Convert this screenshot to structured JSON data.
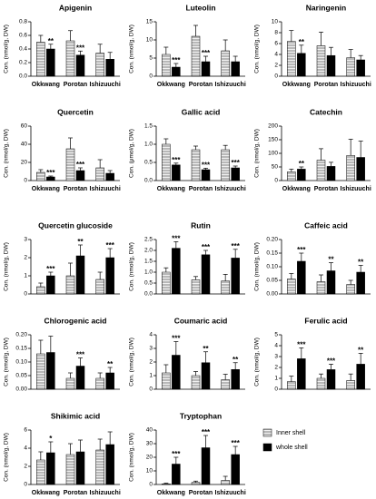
{
  "chart_data": [
    {
      "type": "bar",
      "title": "Apigenin",
      "ylabel": "Con. (nmol/g, DW)",
      "categories": [
        "Okkwang",
        "Porotan",
        "Ishizuuchi"
      ],
      "ylim": [
        0,
        0.8
      ],
      "yticks": [
        {
          "value": 0,
          "label": "0.0"
        },
        0.2,
        0.4,
        0.6,
        0.8
      ],
      "series": [
        {
          "values": [
            0.5,
            0.52,
            0.34
          ],
          "errors": [
            0.1,
            0.15,
            0.13
          ],
          "stars": [
            null,
            null,
            null
          ]
        },
        {
          "values": [
            0.4,
            0.31,
            0.25
          ],
          "errors": [
            0.07,
            0.06,
            0.1
          ],
          "stars": [
            "**",
            "***",
            null
          ]
        }
      ]
    },
    {
      "type": "bar",
      "title": "Luteolin",
      "ylabel": "Con. (nmol/g, DW)",
      "categories": [
        "Okkwang",
        "Porotan",
        "Ishizuuchi"
      ],
      "ylim": [
        0,
        15
      ],
      "yticks": [
        0,
        5,
        10,
        15
      ],
      "series": [
        {
          "values": [
            6,
            11,
            7
          ],
          "errors": [
            2,
            3,
            3
          ],
          "stars": [
            null,
            null,
            null
          ]
        },
        {
          "values": [
            2.5,
            4,
            4
          ],
          "errors": [
            1,
            1.5,
            1.5
          ],
          "stars": [
            "***",
            "***",
            null
          ]
        }
      ]
    },
    {
      "type": "bar",
      "title": "Naringenin",
      "ylabel": "Con. (nmol/g, DW)",
      "categories": [
        "Okkwang",
        "Porotan",
        "Ishizuuchi"
      ],
      "ylim": [
        0,
        10
      ],
      "yticks": [
        0,
        2,
        4,
        6,
        8,
        10
      ],
      "series": [
        {
          "values": [
            6.4,
            5.6,
            3.4
          ],
          "errors": [
            2,
            2.5,
            1.5
          ],
          "stars": [
            null,
            null,
            null
          ]
        },
        {
          "values": [
            4.2,
            3.8,
            3
          ],
          "errors": [
            1.5,
            1.5,
            0.8
          ],
          "stars": [
            "**",
            null,
            null
          ]
        }
      ]
    },
    {
      "type": "bar",
      "title": "Quercetin",
      "ylabel": "Con. (nmol/g, DW)",
      "categories": [
        "Okkwang",
        "Porotan",
        "Ishizuuchi"
      ],
      "ylim": [
        0,
        60
      ],
      "yticks": [
        0,
        20,
        40,
        60
      ],
      "series": [
        {
          "values": [
            9,
            35,
            14
          ],
          "errors": [
            3,
            12,
            9
          ],
          "stars": [
            null,
            null,
            null
          ]
        },
        {
          "values": [
            4,
            11,
            8
          ],
          "errors": [
            1,
            3,
            3
          ],
          "stars": [
            "***",
            "***",
            null
          ]
        }
      ]
    },
    {
      "type": "bar",
      "title": "Gallic acid",
      "ylabel": "Con. (μmol/g, DW)",
      "categories": [
        "Okkwang",
        "Porotan",
        "Ishizuuchi"
      ],
      "ylim": [
        0,
        1.5
      ],
      "yticks": [
        {
          "value": 0,
          "label": "0.0"
        },
        0.5,
        {
          "value": 1,
          "label": "1.0"
        },
        1.5
      ],
      "series": [
        {
          "values": [
            1.0,
            0.85,
            0.85
          ],
          "errors": [
            0.15,
            0.1,
            0.12
          ],
          "stars": [
            null,
            null,
            null
          ]
        },
        {
          "values": [
            0.43,
            0.3,
            0.35
          ],
          "errors": [
            0.05,
            0.04,
            0.05
          ],
          "stars": [
            "***",
            "***",
            "***"
          ]
        }
      ]
    },
    {
      "type": "bar",
      "title": "Catechin",
      "ylabel": "Con. (nmol/g, DW)",
      "categories": [
        "Okkwang",
        "Porotan",
        "Ishizuuchi"
      ],
      "ylim": [
        0,
        200
      ],
      "yticks": [
        0,
        50,
        100,
        150,
        200
      ],
      "series": [
        {
          "values": [
            32,
            75,
            92
          ],
          "errors": [
            10,
            42,
            60
          ],
          "stars": [
            null,
            null,
            null
          ]
        },
        {
          "values": [
            42,
            52,
            85
          ],
          "errors": [
            8,
            15,
            60
          ],
          "stars": [
            "**",
            null,
            null
          ]
        }
      ]
    },
    {
      "type": "bar",
      "title": "Quercetin glucoside",
      "ylabel": "Con. (nmol/g, DW)",
      "categories": [
        null,
        null,
        null
      ],
      "ylim": [
        0,
        3
      ],
      "yticks": [
        0,
        1,
        2,
        3
      ],
      "series": [
        {
          "values": [
            0.4,
            1.0,
            0.8
          ],
          "errors": [
            0.2,
            0.7,
            0.4
          ],
          "stars": [
            null,
            null,
            null
          ]
        },
        {
          "values": [
            1.0,
            2.1,
            2.0
          ],
          "errors": [
            0.2,
            0.6,
            0.5
          ],
          "stars": [
            "***",
            "**",
            "***"
          ]
        }
      ]
    },
    {
      "type": "bar",
      "title": "Rutin",
      "ylabel": "Con. (nmol/g, DW)",
      "categories": [
        null,
        null,
        null
      ],
      "ylim": [
        0,
        2.5
      ],
      "yticks": [
        {
          "value": 0,
          "label": "0.0"
        },
        0.5,
        {
          "value": 1,
          "label": "1.0"
        },
        1.5,
        {
          "value": 2,
          "label": "2.0"
        },
        2.5
      ],
      "series": [
        {
          "values": [
            1.0,
            0.65,
            0.6
          ],
          "errors": [
            0.2,
            0.15,
            0.3
          ],
          "stars": [
            null,
            null,
            null
          ]
        },
        {
          "values": [
            2.1,
            1.8,
            1.65
          ],
          "errors": [
            0.3,
            0.2,
            0.4
          ],
          "stars": [
            "***",
            "***",
            "***"
          ]
        }
      ]
    },
    {
      "type": "bar",
      "title": "Caffeic acid",
      "ylabel": "Con. (nmol/g, DW)",
      "categories": [
        null,
        null,
        null
      ],
      "ylim": [
        0,
        0.2
      ],
      "yticks": [
        {
          "value": 0,
          "label": "0.00"
        },
        0.05,
        {
          "value": 0.1,
          "label": "0.10"
        },
        0.15,
        {
          "value": 0.2,
          "label": "0.20"
        }
      ],
      "series": [
        {
          "values": [
            0.055,
            0.045,
            0.035
          ],
          "errors": [
            0.02,
            0.025,
            0.015
          ],
          "stars": [
            null,
            null,
            null
          ]
        },
        {
          "values": [
            0.12,
            0.085,
            0.08
          ],
          "errors": [
            0.03,
            0.03,
            0.025
          ],
          "stars": [
            "***",
            "**",
            "**"
          ]
        }
      ]
    },
    {
      "type": "bar",
      "title": "Chlorogenic acid",
      "ylabel": "Con. (nmol/g, DW)",
      "categories": [
        null,
        null,
        null
      ],
      "ylim": [
        0,
        0.2
      ],
      "yticks": [
        {
          "value": 0,
          "label": "0.00"
        },
        0.05,
        {
          "value": 0.1,
          "label": "0.10"
        },
        0.15,
        {
          "value": 0.2,
          "label": "0.20"
        }
      ],
      "series": [
        {
          "values": [
            0.13,
            0.04,
            0.04
          ],
          "errors": [
            0.05,
            0.02,
            0.02
          ],
          "stars": [
            null,
            null,
            null
          ]
        },
        {
          "values": [
            0.135,
            0.085,
            0.06
          ],
          "errors": [
            0.06,
            0.03,
            0.02
          ],
          "stars": [
            null,
            "***",
            "**"
          ]
        }
      ]
    },
    {
      "type": "bar",
      "title": "Coumaric acid",
      "ylabel": "Con. (nmol/g, DW)",
      "categories": [
        null,
        null,
        null
      ],
      "ylim": [
        0,
        4
      ],
      "yticks": [
        0,
        1,
        2,
        3,
        4
      ],
      "series": [
        {
          "values": [
            1.2,
            1.0,
            0.7
          ],
          "errors": [
            0.6,
            0.3,
            0.4
          ],
          "stars": [
            null,
            null,
            null
          ]
        },
        {
          "values": [
            2.5,
            1.95,
            1.45
          ],
          "errors": [
            1.0,
            0.8,
            0.5
          ],
          "stars": [
            "***",
            "**",
            "**"
          ]
        }
      ]
    },
    {
      "type": "bar",
      "title": "Ferulic acid",
      "ylabel": "Con. (nmol/g, DW)",
      "categories": [
        null,
        null,
        null
      ],
      "ylim": [
        0,
        5
      ],
      "yticks": [
        0,
        1,
        2,
        3,
        4,
        5
      ],
      "series": [
        {
          "values": [
            0.7,
            1.0,
            0.8
          ],
          "errors": [
            0.5,
            0.4,
            0.6
          ],
          "stars": [
            null,
            null,
            null
          ]
        },
        {
          "values": [
            2.8,
            1.8,
            2.3
          ],
          "errors": [
            1.0,
            0.5,
            1.0
          ],
          "stars": [
            "***",
            "***",
            "**"
          ]
        }
      ]
    },
    {
      "type": "bar",
      "title": "Shikimic acid",
      "ylabel": "Con. (nmol/g, DW)",
      "categories": [
        "Okkwang",
        "Porotan",
        "Ishizuuchi"
      ],
      "ylim": [
        0,
        6
      ],
      "yticks": [
        0,
        2,
        4,
        6
      ],
      "series": [
        {
          "values": [
            2.7,
            3.3,
            3.8
          ],
          "errors": [
            0.9,
            1.2,
            1.2
          ],
          "stars": [
            null,
            null,
            null
          ]
        },
        {
          "values": [
            3.5,
            3.6,
            4.4
          ],
          "errors": [
            1.2,
            1.3,
            1.4
          ],
          "stars": [
            "*",
            null,
            null
          ]
        }
      ]
    },
    {
      "type": "bar",
      "title": "Tryptophan",
      "ylabel": "Con. (nmol/g, DW)",
      "categories": [
        "Okkwang",
        "Porotan",
        "Ishizuuchi"
      ],
      "ylim": [
        0,
        40
      ],
      "yticks": [
        0,
        10,
        20,
        30,
        40
      ],
      "series": [
        {
          "values": [
            0.5,
            1.5,
            3
          ],
          "errors": [
            0.5,
            1,
            3
          ],
          "stars": [
            null,
            null,
            null
          ]
        },
        {
          "values": [
            15,
            27,
            22
          ],
          "errors": [
            5,
            9,
            6
          ],
          "stars": [
            "***",
            "***",
            "***"
          ]
        }
      ]
    }
  ],
  "legend": {
    "items": [
      {
        "name": "Inner shell",
        "color": "#b8b8b8"
      },
      {
        "name": "whole shell",
        "color": "#000000"
      }
    ]
  }
}
